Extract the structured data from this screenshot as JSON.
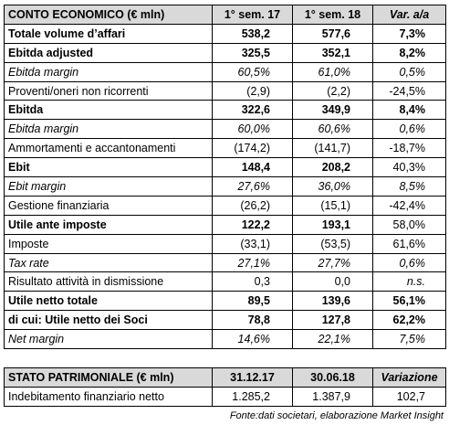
{
  "income_table": {
    "header": [
      "CONTO ECONOMICO (€ mln)",
      "1° sem. 17",
      "1° sem. 18",
      "Var. a/a"
    ],
    "rows": [
      [
        "Totale volume d’affari",
        "538,2",
        "577,6",
        "7,3%"
      ],
      [
        "Ebitda adjusted",
        "325,5",
        "352,1",
        "8,2%"
      ],
      [
        "Ebitda margin",
        "60,5%",
        "61,0%",
        "0,5%"
      ],
      [
        "Proventi/oneri non ricorrenti",
        "(2,9)",
        "(2,2)",
        "-24,5%"
      ],
      [
        "Ebitda",
        "322,6",
        "349,9",
        "8,4%"
      ],
      [
        "Ebitda margin",
        "60,0%",
        "60,6%",
        "0,6%"
      ],
      [
        "Ammortamenti e accantonamenti",
        "(174,2)",
        "(141,7)",
        "-18,7%"
      ],
      [
        "Ebit",
        "148,4",
        "208,2",
        "40,3%"
      ],
      [
        "Ebit margin",
        "27,6%",
        "36,0%",
        "8,5%"
      ],
      [
        "Gestione finanziaria",
        "(26,2)",
        "(15,1)",
        "-42,4%"
      ],
      [
        "Utile ante imposte",
        "122,2",
        "193,1",
        "58,0%"
      ],
      [
        "Imposte",
        "(33,1)",
        "(53,5)",
        "61,6%"
      ],
      [
        "Tax rate",
        "27,1%",
        "27,7%",
        "0,6%"
      ],
      [
        "Risultato attività in dismissione",
        "0,3",
        "0,0",
        "n.s."
      ],
      [
        "Utile netto totale",
        "89,5",
        "139,6",
        "56,1%"
      ],
      [
        "di cui: Utile netto dei Soci",
        "78,8",
        "127,8",
        "62,2%"
      ],
      [
        "Net margin",
        "14,6%",
        "22,1%",
        "7,5%"
      ]
    ]
  },
  "balance_table": {
    "header": [
      "STATO PATRIMONIALE (€ mln)",
      "31.12.17",
      "30.06.18",
      "Variazione"
    ],
    "rows": [
      [
        "Indebitamento finanziario netto",
        "1.285,2",
        "1.387,9",
        "102,7"
      ]
    ]
  },
  "footnote": "Fonte:dati societari, elaborazione Market Insight"
}
